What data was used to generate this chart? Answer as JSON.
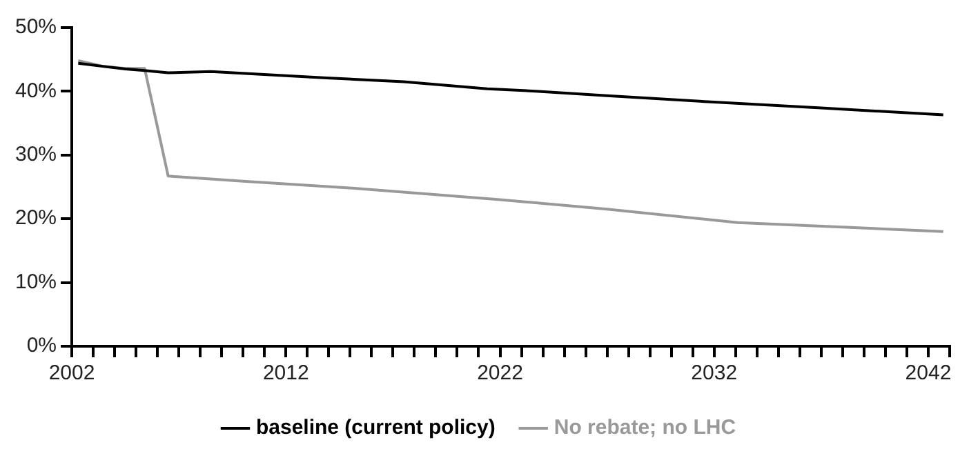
{
  "chart_data": {
    "type": "line",
    "series": [
      {
        "name": "baseline (current policy)",
        "color": "#000000",
        "x": [
          2002.3,
          2003.5,
          2004.5,
          2005.3,
          2006.5,
          2008.5,
          2013.9,
          2017.5,
          2021.4,
          2023.8,
          2027,
          2032,
          2037,
          2042.7
        ],
        "values": [
          44.4,
          43.9,
          43.5,
          43.3,
          42.9,
          43.1,
          42.1,
          41.5,
          40.4,
          40.0,
          39.3,
          38.3,
          37.4,
          36.3
        ]
      },
      {
        "name": "No rebate; no LHC",
        "color": "#999999",
        "x": [
          2002.3,
          2003.5,
          2004.5,
          2005.4,
          2006.5,
          2010,
          2015.1,
          2022,
          2027,
          2033.1,
          2038,
          2042.7
        ],
        "values": [
          44.8,
          43.9,
          43.6,
          43.6,
          26.7,
          25.9,
          24.8,
          23.0,
          21.5,
          19.4,
          18.7,
          18.0
        ]
      }
    ],
    "xlim": [
      2002,
      2043
    ],
    "xticks": [
      2002,
      {
        "value": 2003,
        "label": null
      },
      {
        "value": 2004,
        "label": null
      },
      {
        "value": 2005,
        "label": null
      },
      {
        "value": 2006,
        "label": null
      },
      {
        "value": 2007,
        "label": null
      },
      {
        "value": 2008,
        "label": null
      },
      {
        "value": 2009,
        "label": null
      },
      {
        "value": 2010,
        "label": null
      },
      {
        "value": 2011,
        "label": null
      },
      2012,
      {
        "value": 2013,
        "label": null
      },
      {
        "value": 2014,
        "label": null
      },
      {
        "value": 2015,
        "label": null
      },
      {
        "value": 2016,
        "label": null
      },
      {
        "value": 2017,
        "label": null
      },
      {
        "value": 2018,
        "label": null
      },
      {
        "value": 2019,
        "label": null
      },
      {
        "value": 2020,
        "label": null
      },
      {
        "value": 2021,
        "label": null
      },
      2022,
      {
        "value": 2023,
        "label": null
      },
      {
        "value": 2024,
        "label": null
      },
      {
        "value": 2025,
        "label": null
      },
      {
        "value": 2026,
        "label": null
      },
      {
        "value": 2027,
        "label": null
      },
      {
        "value": 2028,
        "label": null
      },
      {
        "value": 2029,
        "label": null
      },
      {
        "value": 2030,
        "label": null
      },
      {
        "value": 2031,
        "label": null
      },
      2032,
      {
        "value": 2033,
        "label": null
      },
      {
        "value": 2034,
        "label": null
      },
      {
        "value": 2035,
        "label": null
      },
      {
        "value": 2036,
        "label": null
      },
      {
        "value": 2037,
        "label": null
      },
      {
        "value": 2038,
        "label": null
      },
      {
        "value": 2039,
        "label": null
      },
      {
        "value": 2040,
        "label": null
      },
      {
        "value": 2041,
        "label": null
      },
      2042,
      {
        "value": 2043,
        "label": null
      }
    ],
    "ylim": [
      0,
      50
    ],
    "yticks": [
      {
        "value": 0,
        "label": "0%"
      },
      {
        "value": 10,
        "label": "10%"
      },
      {
        "value": 20,
        "label": "20%"
      },
      {
        "value": 30,
        "label": "30%"
      },
      {
        "value": 40,
        "label": "40%"
      },
      {
        "value": 50,
        "label": "50%"
      }
    ],
    "grid": false,
    "legend": "bottom",
    "marker": "none",
    "line_style": "solid"
  }
}
